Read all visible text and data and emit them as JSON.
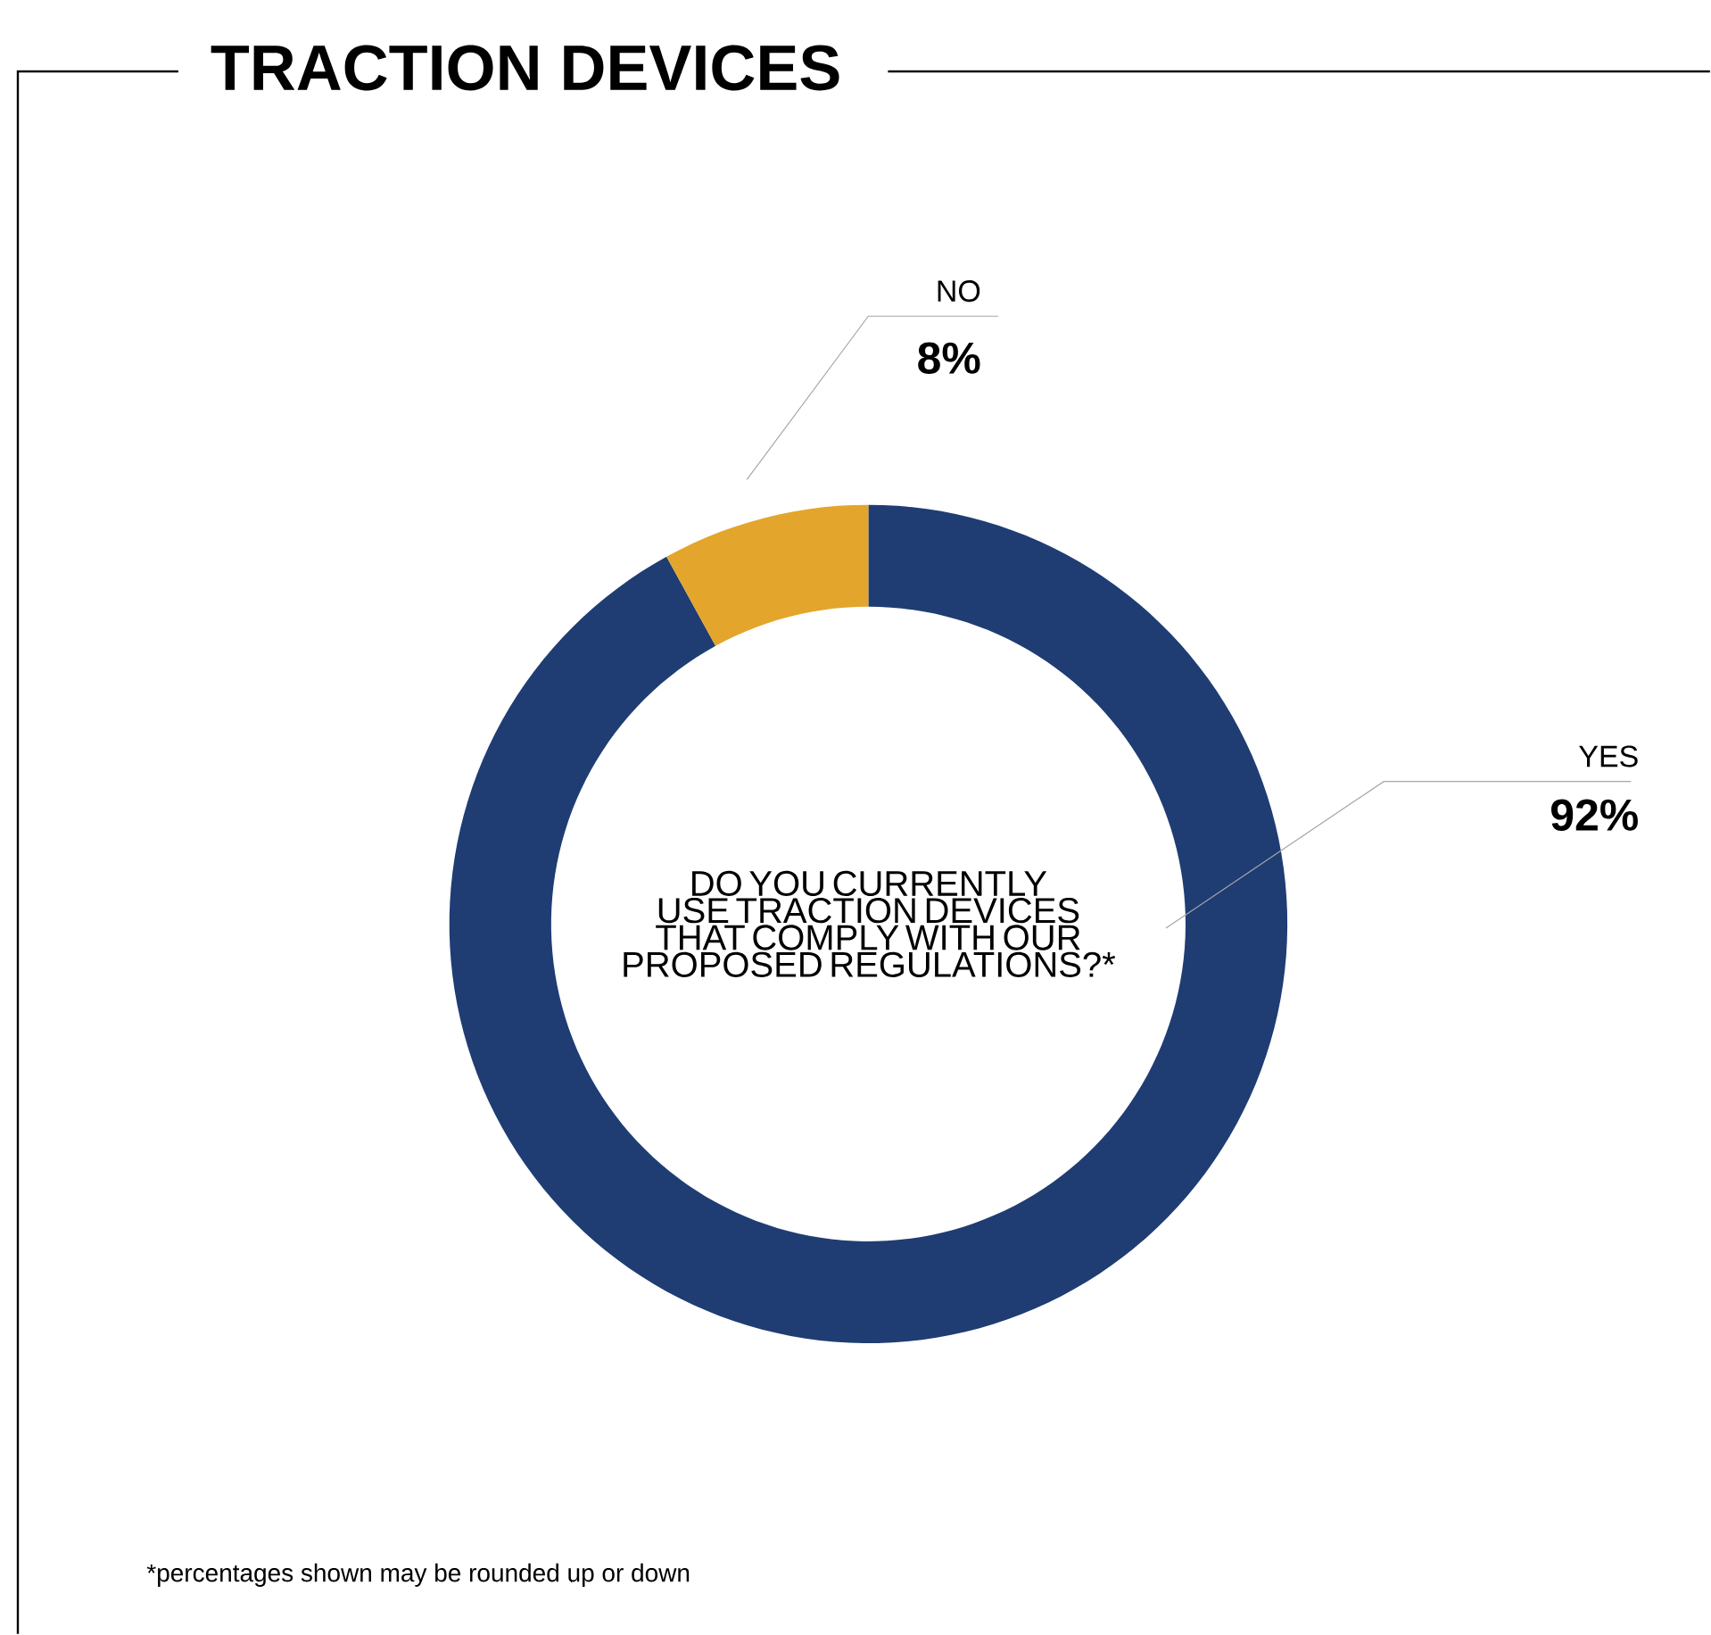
{
  "chart_data": {
    "type": "donut",
    "title": "TRACTION DEVICES",
    "categories": [
      "YES",
      "NO"
    ],
    "values": [
      92,
      8
    ],
    "colors": [
      "#1f3d73",
      "#e3a52b"
    ],
    "value_labels": [
      "92%",
      "8%"
    ],
    "annotations": [
      "DO YOU CURRENTLY USE TRACTION DEVICES THAT COMPLY WITH OUR PROPOSED REGULATIONS?*",
      "*percentages shown may be rounded up or down"
    ]
  }
}
